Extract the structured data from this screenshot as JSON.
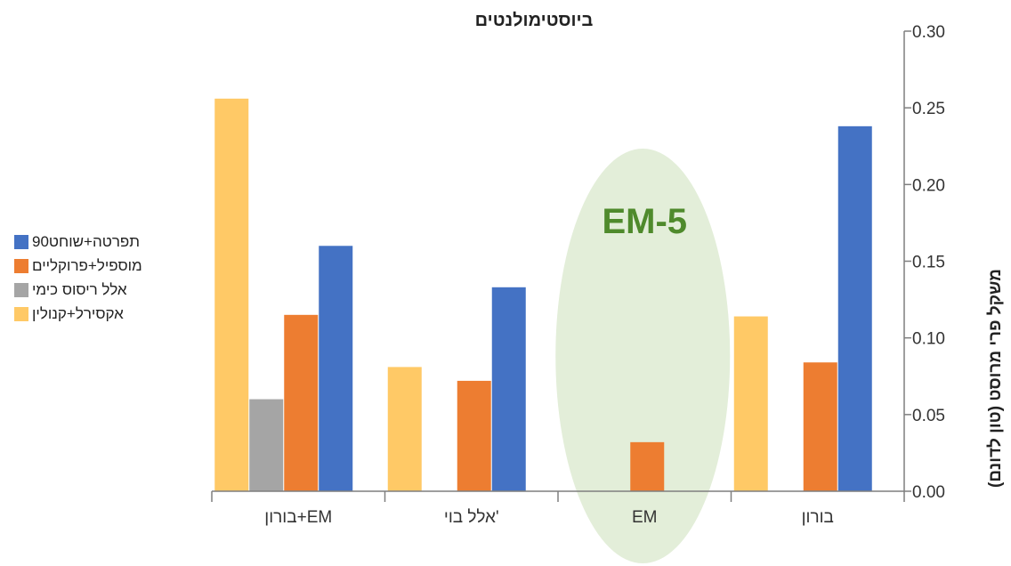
{
  "chart_data": {
    "type": "bar",
    "title": "ביוסטימולנטים",
    "ylabel": "משקל פרי מרוסט (טון לדונם)",
    "xlabel": "",
    "ylim": [
      0,
      0.3
    ],
    "yticks": [
      "0.00",
      "0.05",
      "0.10",
      "0.15",
      "0.20",
      "0.25",
      "0.30"
    ],
    "y_axis_side": "right",
    "categories_left_to_right": [
      "בורון+EM",
      "אלל בוי'",
      "EM",
      "בורון"
    ],
    "series": [
      {
        "name": "אקסירל+קנולין",
        "color": "#FFC966",
        "values": [
          0.256,
          0.081,
          null,
          0.114
        ]
      },
      {
        "name": "אלל ריסוס כימי",
        "color": "#A5A5A5",
        "values": [
          0.06,
          null,
          null,
          null
        ]
      },
      {
        "name": "מוספיל+פרוקליים",
        "color": "#ED7D31",
        "values": [
          0.115,
          0.072,
          0.032,
          0.084
        ]
      },
      {
        "name": "תפרטה+שוחט90",
        "color": "#4472C4",
        "values": [
          0.16,
          0.133,
          null,
          0.238
        ]
      }
    ],
    "annotation": {
      "text": "EM-5",
      "color": "#4F8A2C",
      "highlight_color": "#E3EED9",
      "category": "EM"
    },
    "legend_position": "left",
    "grid": false
  }
}
